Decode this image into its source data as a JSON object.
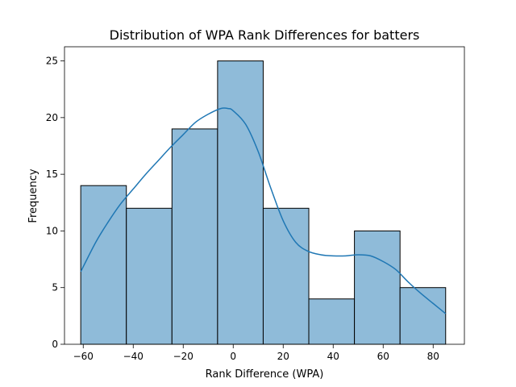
{
  "chart_data": {
    "type": "histogram",
    "title": "Distribution of WPA Rank Differences for batters",
    "xlabel": "Rank Difference (WPA)",
    "ylabel": "Frequency",
    "xlim": [
      -67.5,
      92.5
    ],
    "ylim": [
      0,
      26.25
    ],
    "xticks": [
      -60,
      -40,
      -20,
      0,
      20,
      40,
      60,
      80
    ],
    "yticks": [
      0,
      5,
      10,
      15,
      20,
      25
    ],
    "bins": [
      {
        "start": -61,
        "end": -42.75,
        "count": 14
      },
      {
        "start": -42.75,
        "end": -24.5,
        "count": 12
      },
      {
        "start": -24.5,
        "end": -6.25,
        "count": 19
      },
      {
        "start": -6.25,
        "end": 12,
        "count": 25
      },
      {
        "start": 12,
        "end": 30.25,
        "count": 12
      },
      {
        "start": 30.25,
        "end": 48.5,
        "count": 4
      },
      {
        "start": 48.5,
        "end": 66.75,
        "count": 10
      },
      {
        "start": 66.75,
        "end": 85,
        "count": 5
      }
    ],
    "kde": {
      "x": [
        -61,
        -55,
        -50,
        -45,
        -40,
        -35,
        -30,
        -25,
        -20,
        -15,
        -10,
        -5,
        -2,
        0,
        5,
        10,
        15,
        20,
        25,
        30,
        35,
        40,
        45,
        50,
        55,
        60,
        65,
        70,
        75,
        80,
        85
      ],
      "y": [
        6.4,
        9.0,
        10.8,
        12.4,
        13.7,
        15.0,
        16.2,
        17.4,
        18.5,
        19.6,
        20.3,
        20.8,
        20.8,
        20.6,
        19.4,
        17.0,
        13.8,
        10.9,
        9.0,
        8.2,
        7.9,
        7.8,
        7.8,
        7.9,
        7.8,
        7.3,
        6.6,
        5.5,
        4.5,
        3.6,
        2.7
      ]
    },
    "grid": false,
    "legend": "none",
    "colors": {
      "bar_fill": "#8fbbd9",
      "bar_edge": "#000000",
      "kde_line": "#1f77b4",
      "axes": "#000000"
    }
  }
}
